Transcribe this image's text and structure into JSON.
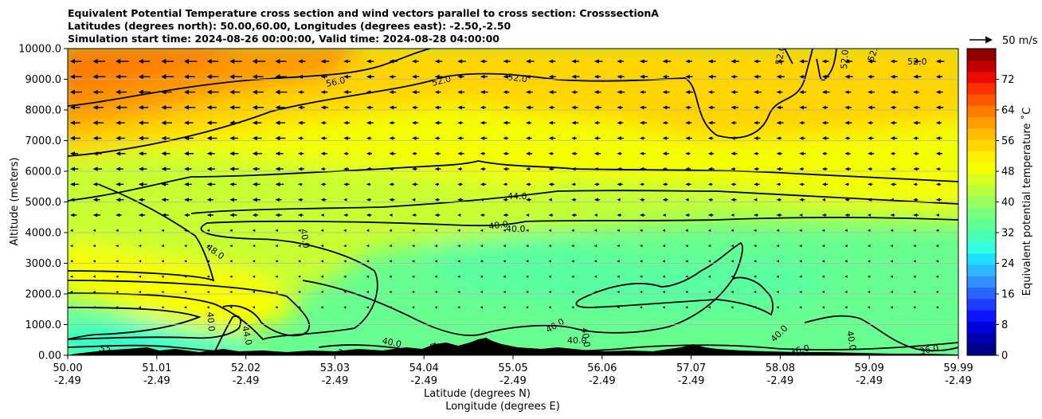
{
  "chart_data": {
    "type": "contourf",
    "title_lines": [
      "Equivalent Potential Temperature cross section and wind vectors parallel to cross section: CrosssectionA",
      "Latitudes (degrees north): 50.00,60.00, Longitudes (degrees east): -2.50,-2.50",
      "Simulation start time: 2024-08-26 00:00:00, Valid time: 2024-08-28 04:00:00"
    ],
    "xlabel_lines": [
      "Latitude (degrees N)",
      "Longitude (degrees E)"
    ],
    "ylabel": "Altitude (meters)",
    "ylim": [
      0,
      10000
    ],
    "xlim": [
      50.0,
      59.99
    ],
    "x_ticks": [
      {
        "lat": "50.00",
        "lon": "-2.49"
      },
      {
        "lat": "51.01",
        "lon": "-2.49"
      },
      {
        "lat": "52.02",
        "lon": "-2.49"
      },
      {
        "lat": "53.03",
        "lon": "-2.49"
      },
      {
        "lat": "54.04",
        "lon": "-2.49"
      },
      {
        "lat": "55.05",
        "lon": "-2.49"
      },
      {
        "lat": "56.06",
        "lon": "-2.49"
      },
      {
        "lat": "57.07",
        "lon": "-2.49"
      },
      {
        "lat": "58.08",
        "lon": "-2.49"
      },
      {
        "lat": "59.09",
        "lon": "-2.49"
      },
      {
        "lat": "59.99",
        "lon": "-2.49"
      }
    ],
    "y_ticks": [
      "0.00",
      "1000.0",
      "2000.0",
      "3000.0",
      "4000.0",
      "5000.0",
      "6000.0",
      "7000.0",
      "8000.0",
      "9000.0",
      "10000.0"
    ],
    "colorbar": {
      "label": "Equivalent potential temperature ˚C",
      "min": 0,
      "max": 80,
      "ticks": [
        "0",
        "8",
        "16",
        "24",
        "32",
        "40",
        "48",
        "56",
        "64",
        "72"
      ],
      "colors": [
        "#00008b",
        "#0000b0",
        "#0000dd",
        "#0a14ff",
        "#1e3cff",
        "#2864ff",
        "#3090ff",
        "#30b8ff",
        "#20e0ff",
        "#30ffe0",
        "#48ffb8",
        "#60ff98",
        "#78ff80",
        "#98ff60",
        "#b8ff40",
        "#d8ff20",
        "#f4ff00",
        "#ffee00",
        "#ffd800",
        "#ffbc00",
        "#ff9c00",
        "#ff7c00",
        "#ff5800",
        "#ff3000",
        "#ee0a00",
        "#c00000",
        "#900000"
      ]
    },
    "wind_key": {
      "label": "50 m/s",
      "value": 50
    },
    "contour_labels": [
      "56.0",
      "52.0",
      "52.0",
      "52.0",
      "52.0",
      "52.0",
      "52.0",
      "48.0",
      "44.0",
      "40.0",
      "40.0",
      "40.0",
      "40.0",
      "40.0",
      "40.0",
      "40.0",
      "40.0",
      "40.0",
      "40.0",
      "40.0",
      "44.0",
      "36.0",
      "36.0",
      "36.0"
    ]
  }
}
